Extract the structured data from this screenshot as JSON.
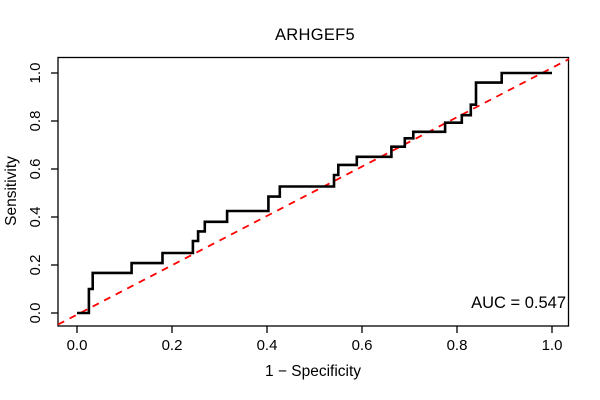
{
  "figure": {
    "title": "ARHGEF5",
    "xlabel": "1 − Specificity",
    "ylabel": "Sensitivity",
    "auc_label": "AUC = 0.547",
    "background_color": "#ffffff",
    "curve_color": "#000000",
    "diagonal_color": "#ff0000",
    "axis_color": "#000000"
  },
  "chart_data": {
    "type": "line",
    "subtype": "roc-step-curve",
    "title": "ARHGEF5",
    "xlabel": "1 − Specificity",
    "ylabel": "Sensitivity",
    "xlim": [
      0.0,
      1.0
    ],
    "ylim": [
      0.0,
      1.0
    ],
    "grid": false,
    "x_ticks": [
      0.0,
      0.2,
      0.4,
      0.6,
      0.8,
      1.0
    ],
    "y_ticks": [
      0.0,
      0.2,
      0.4,
      0.6,
      0.8,
      1.0
    ],
    "x_tick_labels": [
      "0.0",
      "0.2",
      "0.4",
      "0.6",
      "0.8",
      "1.0"
    ],
    "y_tick_labels": [
      "0.0",
      "0.2",
      "0.4",
      "0.6",
      "0.8",
      "1.0"
    ],
    "auc": 0.547,
    "auc_label": "AUC = 0.547",
    "annotations": [
      {
        "text": "AUC = 0.547",
        "x": 1.0,
        "y": 0.04,
        "anchor": "end"
      }
    ],
    "series": [
      {
        "name": "ROC curve",
        "color": "#000000",
        "line_style": "solid",
        "line_width": 2.6,
        "step": true,
        "points": [
          [
            0.0,
            0.0
          ],
          [
            0.025,
            0.0
          ],
          [
            0.025,
            0.1
          ],
          [
            0.033,
            0.1
          ],
          [
            0.033,
            0.167
          ],
          [
            0.115,
            0.167
          ],
          [
            0.115,
            0.208
          ],
          [
            0.18,
            0.208
          ],
          [
            0.18,
            0.25
          ],
          [
            0.244,
            0.25
          ],
          [
            0.244,
            0.3
          ],
          [
            0.255,
            0.3
          ],
          [
            0.255,
            0.34
          ],
          [
            0.269,
            0.34
          ],
          [
            0.269,
            0.38
          ],
          [
            0.316,
            0.38
          ],
          [
            0.316,
            0.425
          ],
          [
            0.403,
            0.425
          ],
          [
            0.403,
            0.485
          ],
          [
            0.427,
            0.485
          ],
          [
            0.427,
            0.527
          ],
          [
            0.541,
            0.527
          ],
          [
            0.541,
            0.575
          ],
          [
            0.55,
            0.575
          ],
          [
            0.55,
            0.617
          ],
          [
            0.589,
            0.617
          ],
          [
            0.589,
            0.651
          ],
          [
            0.662,
            0.651
          ],
          [
            0.662,
            0.693
          ],
          [
            0.69,
            0.693
          ],
          [
            0.69,
            0.728
          ],
          [
            0.708,
            0.728
          ],
          [
            0.708,
            0.755
          ],
          [
            0.775,
            0.755
          ],
          [
            0.775,
            0.793
          ],
          [
            0.81,
            0.793
          ],
          [
            0.81,
            0.824
          ],
          [
            0.829,
            0.824
          ],
          [
            0.829,
            0.868
          ],
          [
            0.84,
            0.868
          ],
          [
            0.84,
            0.96
          ],
          [
            0.894,
            0.96
          ],
          [
            0.894,
            1.0
          ],
          [
            1.0,
            1.0
          ]
        ]
      },
      {
        "name": "Chance diagonal",
        "color": "#ff0000",
        "line_style": "dashed",
        "line_width": 1.8,
        "step": false,
        "points": [
          [
            0.0,
            0.0
          ],
          [
            1.0,
            1.0
          ]
        ]
      }
    ],
    "legend": null
  }
}
